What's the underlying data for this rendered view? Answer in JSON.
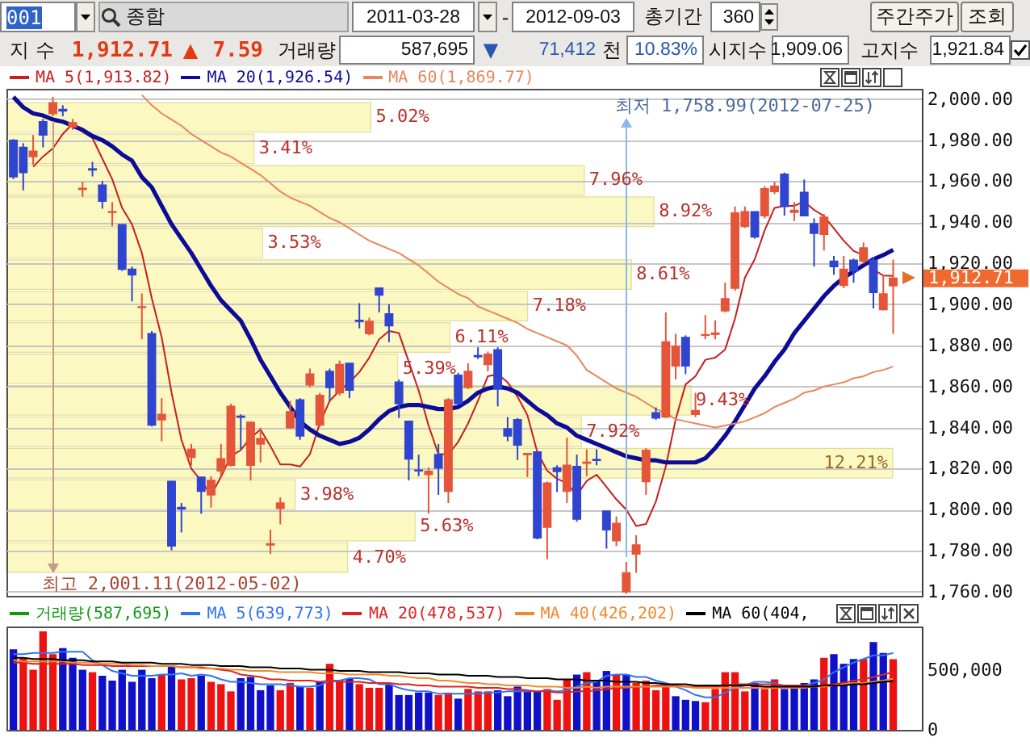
{
  "chart_data": [
    {
      "type": "other",
      "annotations": [
        "001",
        "종합",
        "2011-03-28",
        "-",
        "2012-09-03",
        "총기간",
        "360",
        "주간주가",
        "조회",
        "지 수",
        "1,912.71",
        "▲",
        "7.59",
        "거래량",
        "587,695",
        "▼",
        "71,412",
        "천",
        "10.83%",
        "시지수",
        "1,909.06",
        "고지수",
        "1,921.84"
      ]
    },
    {
      "type": "candlestick",
      "categories": [
        null,
        null,
        null,
        null,
        null,
        null,
        null,
        null,
        null,
        null,
        null,
        null,
        null,
        null,
        null,
        null,
        null,
        null,
        null,
        null,
        null,
        null,
        null,
        null,
        null,
        null,
        null,
        null,
        null,
        null,
        null,
        null,
        null,
        null,
        null,
        null,
        null,
        null,
        null,
        null,
        null,
        null,
        null,
        null,
        null,
        null,
        null,
        null,
        null,
        null,
        null,
        null,
        null,
        null,
        null,
        null,
        null,
        null,
        null,
        null,
        null,
        null,
        null,
        null,
        null,
        null,
        null,
        null,
        null,
        null,
        null,
        null,
        null,
        null,
        null,
        null,
        null,
        null,
        null,
        null,
        null,
        null,
        null,
        null,
        null,
        null,
        null,
        null,
        null,
        null
      ],
      "ohlc": [
        [
          1979.9,
          1980.5,
          1961.0,
          1962.1
        ],
        [
          1976.5,
          1978.5,
          1955.5,
          1964.2
        ],
        [
          1972.0,
          1982.5,
          1968.0,
          1974.6
        ],
        [
          1989.0,
          1990.3,
          1976.5,
          1982.5
        ],
        [
          1992.9,
          2001.11,
          1991.6,
          1998.2
        ],
        [
          1995.0,
          1997.0,
          1991.6,
          1994.2
        ],
        [
          1986.4,
          1990.3,
          1985.0,
          1988.5
        ],
        [
          1956.0,
          1959.7,
          1952.4,
          1956.5
        ],
        [
          1966.0,
          1969.4,
          1962.3,
          1965.5
        ],
        [
          1958.1,
          1960.2,
          1946.6,
          1950.3
        ],
        [
          1944.8,
          1949.8,
          1938.0,
          1945.1
        ],
        [
          1938.8,
          1939.0,
          1916.3,
          1917.1
        ],
        [
          1917.1,
          1918.4,
          1901.4,
          1914.4
        ],
        [
          1898.5,
          1905.3,
          1883.0,
          1898.8
        ],
        [
          1885.7,
          1887.0,
          1840.5,
          1841.2
        ],
        [
          1843.8,
          1854.3,
          1833.3,
          1846.4
        ],
        [
          1813.7,
          1814.0,
          1780.2,
          1782.3
        ],
        [
          1801.0,
          1803.2,
          1788.9,
          1800.3
        ],
        [
          1825.5,
          1832.0,
          1821.6,
          1829.4
        ],
        [
          1815.8,
          1816.0,
          1798.0,
          1809.0
        ],
        [
          1807.2,
          1816.3,
          1801.0,
          1814.2
        ],
        [
          1818.9,
          1832.0,
          1816.3,
          1824.7
        ],
        [
          1821.6,
          1851.6,
          1821.0,
          1850.3
        ],
        [
          1845.5,
          1846.4,
          1829.4,
          1845.0
        ],
        [
          1821.6,
          1842.8,
          1814.2,
          1842.5
        ],
        [
          1832.0,
          1839.9,
          1822.9,
          1834.6
        ],
        [
          1782.8,
          1790.2,
          1778.4,
          1783.3
        ],
        [
          1800.6,
          1805.9,
          1792.8,
          1803.2
        ],
        [
          1839.9,
          1853.0,
          1839.4,
          1847.7
        ],
        [
          1853.5,
          1854.3,
          1834.0,
          1835.9
        ],
        [
          1860.8,
          1868.7,
          1859.5,
          1866.0
        ],
        [
          1841.2,
          1856.9,
          1840.4,
          1855.6
        ],
        [
          1867.3,
          1868.7,
          1853.0,
          1859.5
        ],
        [
          1856.9,
          1872.6,
          1855.6,
          1870.7
        ],
        [
          1871.3,
          1871.5,
          1854.3,
          1858.2
        ],
        [
          1892.2,
          1900.6,
          1888.3,
          1891.7
        ],
        [
          1885.7,
          1893.5,
          1884.9,
          1891.7
        ],
        [
          1907.9,
          1908.2,
          1896.1,
          1904.5
        ],
        [
          1895.3,
          1900.0,
          1881.6,
          1889.6
        ],
        [
          1862.1,
          1863.4,
          1844.6,
          1851.6
        ],
        [
          1843.0,
          1843.3,
          1814.2,
          1824.7
        ],
        [
          1819.2,
          1826.8,
          1816.3,
          1818.9
        ],
        [
          1817.1,
          1820.5,
          1798.0,
          1818.6
        ],
        [
          1826.8,
          1832.0,
          1807.2,
          1820.3
        ],
        [
          1809.0,
          1854.3,
          1803.2,
          1853.5
        ],
        [
          1865.5,
          1866.6,
          1851.0,
          1851.6
        ],
        [
          1859.5,
          1871.3,
          1858.7,
          1867.3
        ],
        [
          1875.0,
          1879.1,
          1873.4,
          1874.5
        ],
        [
          1870.7,
          1877.0,
          1867.3,
          1875.7
        ],
        [
          1877.8,
          1879.1,
          1850.3,
          1858.7
        ],
        [
          1839.4,
          1845.1,
          1833.3,
          1835.9
        ],
        [
          1843.8,
          1844.6,
          1824.2,
          1831.5
        ],
        [
          1826.8,
          1827.5,
          1815.8,
          1827.3
        ],
        [
          1828.1,
          1828.4,
          1785.5,
          1786.2
        ],
        [
          1791.5,
          1813.7,
          1775.8,
          1812.9
        ],
        [
          1820.3,
          1821.6,
          1808.5,
          1818.6
        ],
        [
          1809.0,
          1835.1,
          1803.2,
          1821.6
        ],
        [
          1821.0,
          1826.8,
          1794.1,
          1795.4
        ],
        [
          1822.6,
          1829.4,
          1816.3,
          1823.1
        ],
        [
          1824.4,
          1829.4,
          1821.6,
          1824.0
        ],
        [
          1799.3,
          1799.5,
          1781.0,
          1790.2
        ],
        [
          1784.9,
          1796.7,
          1782.3,
          1793.3
        ],
        [
          1760.0,
          1774.5,
          1758.99,
          1769.2
        ],
        [
          1778.4,
          1787.5,
          1769.2,
          1782.8
        ],
        [
          1813.7,
          1829.9,
          1807.2,
          1828.9
        ],
        [
          1847.2,
          1849.8,
          1843.8,
          1844.6
        ],
        [
          1845.1,
          1896.1,
          1844.6,
          1881.7
        ],
        [
          1870.0,
          1885.7,
          1863.4,
          1879.6
        ],
        [
          1883.8,
          1884.9,
          1866.0,
          1870.0
        ],
        [
          1846.4,
          1856.9,
          1845.1,
          1848.2
        ],
        [
          1884.9,
          1894.8,
          1883.0,
          1885.2
        ],
        [
          1885.4,
          1892.2,
          1883.0,
          1886.0
        ],
        [
          1896.9,
          1910.5,
          1896.1,
          1902.7
        ],
        [
          1907.9,
          1947.7,
          1906.6,
          1944.5
        ],
        [
          1938.0,
          1947.7,
          1937.2,
          1945.1
        ],
        [
          1945.1,
          1945.3,
          1932.0,
          1932.8
        ],
        [
          1943.2,
          1957.6,
          1941.9,
          1956.3
        ],
        [
          1955.0,
          1959.7,
          1953.7,
          1957.6
        ],
        [
          1963.4,
          1964.2,
          1943.2,
          1947.7
        ],
        [
          1944.8,
          1949.8,
          1940.6,
          1945.8
        ],
        [
          1954.5,
          1960.8,
          1943.0,
          1943.2
        ],
        [
          1939.3,
          1941.9,
          1918.4,
          1934.6
        ],
        [
          1934.1,
          1944.0,
          1926.2,
          1942.4
        ],
        [
          1921.0,
          1923.6,
          1914.4,
          1918.4
        ],
        [
          1909.2,
          1923.6,
          1907.9,
          1917.1
        ],
        [
          1921.5,
          1922.3,
          1910.5,
          1916.3
        ],
        [
          1921.0,
          1930.1,
          1919.7,
          1927.5
        ],
        [
          1921.5,
          1923.1,
          1898.0,
          1905.8
        ],
        [
          1897.4,
          1914.4,
          1897.0,
          1905.1
        ],
        [
          1909.06,
          1921.84,
          1885.7,
          1912.71
        ]
      ],
      "colors": [
        "#2f45d0",
        "#2f45d0",
        "#e4553a",
        "#2f45d0",
        "#e4553a",
        "#2f45d0",
        "#e4553a",
        "#e4553a",
        "#2f45d0",
        "#2f45d0",
        "#e4553a",
        "#2f45d0",
        "#2f45d0",
        "#e4553a",
        "#2f45d0",
        "#e4553a",
        "#2f45d0",
        "#2f45d0",
        "#e4553a",
        "#2f45d0",
        "#e4553a",
        "#e4553a",
        "#e4553a",
        "#2f45d0",
        "#e4553a",
        "#e4553a",
        "#e4553a",
        "#e4553a",
        "#e4553a",
        "#2f45d0",
        "#e4553a",
        "#e4553a",
        "#2f45d0",
        "#e4553a",
        "#2f45d0",
        "#2f45d0",
        "#e4553a",
        "#2f45d0",
        "#2f45d0",
        "#2f45d0",
        "#2f45d0",
        "#2f45d0",
        "#e4553a",
        "#2f45d0",
        "#e4553a",
        "#2f45d0",
        "#e4553a",
        "#2f45d0",
        "#e4553a",
        "#2f45d0",
        "#2f45d0",
        "#2f45d0",
        "#e4553a",
        "#2f45d0",
        "#e4553a",
        "#2f45d0",
        "#e4553a",
        "#2f45d0",
        "#e4553a",
        "#2f45d0",
        "#2f45d0",
        "#e4553a",
        "#e4553a",
        "#e4553a",
        "#e4553a",
        "#2f45d0",
        "#e4553a",
        "#e4553a",
        "#2f45d0",
        "#e4553a",
        "#e4553a",
        "#e4553a",
        "#e4553a",
        "#e4553a",
        "#e4553a",
        "#2f45d0",
        "#e4553a",
        "#e4553a",
        "#2f45d0",
        "#e4553a",
        "#2f45d0",
        "#2f45d0",
        "#e4553a",
        "#2f45d0",
        "#e4553a",
        "#2f45d0",
        "#e4553a",
        "#2f45d0",
        "#e4553a",
        "#e4553a"
      ],
      "series": [
        {
          "name": "MA 5(1,913.82)",
          "type": "line",
          "color": "#c81e1e",
          "values": [
            null,
            null,
            1967,
            1972,
            1976,
            1983,
            1988,
            1984,
            1981,
            1971,
            1961,
            1947,
            1939,
            1925,
            1903,
            1884,
            1857,
            1834,
            1820,
            1814,
            1807,
            1816,
            1826,
            1829,
            1835,
            1839,
            1831,
            1822,
            1822,
            1821,
            1827,
            1842,
            1853,
            1858,
            1862,
            1867,
            1874,
            1883,
            1887,
            1886,
            1872,
            1858,
            1841,
            1827,
            1827,
            1833,
            1842,
            1853,
            1865,
            1866,
            1862,
            1855,
            1846,
            1828,
            1819,
            1815,
            1813,
            1807,
            1814,
            1817,
            1811,
            1805,
            1800,
            1792,
            1793,
            1804,
            1821,
            1844,
            1861,
            1865,
            1873,
            1874,
            1878,
            1893,
            1913,
            1922,
            1936,
            1947,
            1948,
            1948,
            1950,
            1946,
            1943,
            1937,
            1931,
            1926,
            1924,
            1917,
            1914,
            1913.82
          ]
        },
        {
          "name": "MA 20(1,926.54)",
          "type": "line",
          "color": "#0c0c96",
          "values": [
            2001,
            1996,
            1993,
            1992,
            1990,
            1989,
            1987,
            1985,
            1982,
            1980,
            1977,
            1973,
            1970,
            1962,
            1957,
            1948,
            1939,
            1932,
            1925,
            1917,
            1909,
            1902,
            1897,
            1892,
            1883,
            1873,
            1865,
            1857,
            1850,
            1843,
            1839,
            1836,
            1834,
            1832,
            1833,
            1835,
            1839,
            1844,
            1848,
            1850,
            1851,
            1851,
            1850,
            1849,
            1849,
            1850,
            1853,
            1857,
            1859,
            1860,
            1859,
            1857,
            1853,
            1849,
            1846,
            1842,
            1840,
            1836,
            1834,
            1832,
            1830,
            1828,
            1826,
            1825,
            1824,
            1824,
            1823,
            1823,
            1823,
            1823,
            1825,
            1830,
            1836,
            1843,
            1851,
            1859,
            1865,
            1872,
            1878,
            1886,
            1892,
            1898,
            1904,
            1909,
            1913,
            1916,
            1919,
            1922,
            1924,
            1926.54
          ]
        },
        {
          "name": "MA 60(1,869.77)",
          "type": "line",
          "color": "#e8875a",
          "values": [
            null,
            null,
            null,
            null,
            null,
            null,
            null,
            null,
            null,
            null,
            null,
            null,
            null,
            2002,
            1997,
            1993,
            1990,
            1987,
            1983,
            1980,
            1977,
            1974,
            1972,
            1969,
            1966,
            1963,
            1959,
            1955,
            1952,
            1950,
            1948,
            1945,
            1942,
            1940,
            1937,
            1934,
            1931,
            1929,
            1927,
            1925,
            1922,
            1919,
            1915,
            1911,
            1908,
            1905,
            1903,
            1899,
            1897,
            1895,
            1893,
            1891,
            1888,
            1886,
            1884,
            1882,
            1880,
            1875,
            1868,
            1865,
            1862,
            1859,
            1857,
            1855,
            1852,
            1849,
            1847,
            1844,
            1843,
            1842,
            1841,
            1840,
            1841,
            1842,
            1843,
            1845,
            1847,
            1850,
            1852,
            1854,
            1857,
            1858,
            1860,
            1861,
            1862,
            1864,
            1865,
            1867,
            1868,
            1869.77
          ]
        }
      ],
      "ylim": [
        1758,
        2005
      ],
      "yticks": [
        {
          "value": 1760,
          "label": "1,760.00"
        },
        {
          "value": 1780,
          "label": "1,780.00"
        },
        {
          "value": 1800,
          "label": "1,800.00"
        },
        {
          "value": 1820,
          "label": "1,820.00"
        },
        {
          "value": 1840,
          "label": "1,840.00"
        },
        {
          "value": 1860,
          "label": "1,860.00"
        },
        {
          "value": 1880,
          "label": "1,880.00"
        },
        {
          "value": 1900,
          "label": "1,900.00"
        },
        {
          "value": 1920,
          "label": "1,920.00"
        },
        {
          "value": 1940,
          "label": "1,940.00"
        },
        {
          "value": 1960,
          "label": "1,960.00"
        },
        {
          "value": 1980,
          "label": "1,980.00"
        },
        {
          "value": 2000,
          "label": "2,000.00"
        }
      ],
      "grid": "y",
      "legend": "top left",
      "tick_labels": "y",
      "annotations": [
        "최고 2,001.11(2012-05-02)",
        "최저 1,758.99(2012-07-25)",
        "1,912.71"
      ]
    },
    {
      "type": "bar",
      "orientation": "horizontal",
      "categories": [
        null,
        null,
        null,
        null,
        null,
        null,
        null,
        null,
        null,
        null,
        null,
        null,
        null,
        null,
        null
      ],
      "color": "#fbf8c2",
      "values": [
        5.02,
        3.41,
        7.96,
        8.92,
        3.53,
        8.61,
        7.18,
        6.11,
        5.39,
        9.43,
        7.92,
        12.21,
        3.98,
        5.63,
        4.7
      ],
      "value_labels": [
        "5.02%",
        "3.41%",
        "7.96%",
        "8.92%",
        "3.53%",
        "8.61%",
        "7.18%",
        "6.11%",
        "5.39%",
        "9.43%",
        "7.92%",
        "12.21%",
        "3.98%",
        "5.63%",
        "4.70%"
      ],
      "tick_labels": false
    },
    {
      "type": "bar",
      "categories": [
        null,
        null,
        null,
        null,
        null,
        null,
        null,
        null,
        null,
        null,
        null,
        null,
        null,
        null,
        null,
        null,
        null,
        null,
        null,
        null,
        null,
        null,
        null,
        null,
        null,
        null,
        null,
        null,
        null,
        null,
        null,
        null,
        null,
        null,
        null,
        null,
        null,
        null,
        null,
        null,
        null,
        null,
        null,
        null,
        null,
        null,
        null,
        null,
        null,
        null,
        null,
        null,
        null,
        null,
        null,
        null,
        null,
        null,
        null,
        null,
        null,
        null,
        null,
        null,
        null,
        null,
        null,
        null,
        null,
        null,
        null,
        null,
        null,
        null,
        null,
        null,
        null,
        null,
        null,
        null,
        null,
        null,
        null,
        null,
        null,
        null,
        null,
        null,
        null,
        null
      ],
      "series": [
        {
          "name": "거래량(587,695)",
          "color": "#119911",
          "colors": [
            "#1010c8",
            "#ee1111",
            "#ee1111",
            "#ee1111",
            "#ee1111",
            "#1010c8",
            "#1010c8",
            "#1010c8",
            "#ee1111",
            "#1010c8",
            "#1010c8",
            "#1010c8",
            "#1010c8",
            "#1010c8",
            "#1010c8",
            "#ee1111",
            "#1010c8",
            "#ee1111",
            "#ee1111",
            "#1010c8",
            "#ee1111",
            "#ee1111",
            "#ee1111",
            "#1010c8",
            "#1010c8",
            "#1010c8",
            "#1010c8",
            "#ee1111",
            "#ee1111",
            "#1010c8",
            "#ee1111",
            "#1010c8",
            "#ee1111",
            "#ee1111",
            "#1010c8",
            "#ee1111",
            "#ee1111",
            "#ee1111",
            "#1010c8",
            "#1010c8",
            "#1010c8",
            "#1010c8",
            "#1010c8",
            "#ee1111",
            "#ee1111",
            "#1010c8",
            "#ee1111",
            "#ee1111",
            "#ee1111",
            "#1010c8",
            "#1010c8",
            "#1010c8",
            "#1010c8",
            "#1010c8",
            "#ee1111",
            "#ee1111",
            "#ee1111",
            "#1010c8",
            "#ee1111",
            "#1010c8",
            "#1010c8",
            "#ee1111",
            "#1010c8",
            "#ee1111",
            "#ee1111",
            "#ee1111",
            "#ee1111",
            "#1010c8",
            "#1010c8",
            "#1010c8",
            "#ee1111",
            "#ee1111",
            "#ee1111",
            "#ee1111",
            "#ee1111",
            "#1010c8",
            "#ee1111",
            "#ee1111",
            "#1010c8",
            "#1010c8",
            "#1010c8",
            "#1010c8",
            "#ee1111",
            "#1010c8",
            "#1010c8",
            "#1010c8",
            "#ee1111",
            "#1010c8",
            "#1010c8",
            "#ee1111"
          ],
          "values": [
            670000,
            600000,
            500000,
            820000,
            630000,
            680000,
            600000,
            500000,
            480000,
            450000,
            410000,
            500000,
            400000,
            500000,
            430000,
            460000,
            530000,
            420000,
            430000,
            450000,
            400000,
            380000,
            320000,
            430000,
            440000,
            330000,
            370000,
            330000,
            390000,
            360000,
            350000,
            400000,
            550000,
            410000,
            430000,
            380000,
            350000,
            350000,
            380000,
            290000,
            290000,
            310000,
            310000,
            290000,
            310000,
            260000,
            340000,
            320000,
            320000,
            330000,
            280000,
            360000,
            330000,
            320000,
            340000,
            250000,
            420000,
            460000,
            480000,
            410000,
            490000,
            460000,
            460000,
            390000,
            410000,
            330000,
            370000,
            280000,
            250000,
            240000,
            230000,
            340000,
            480000,
            480000,
            320000,
            390000,
            340000,
            420000,
            340000,
            370000,
            390000,
            420000,
            600000,
            630000,
            550000,
            590000,
            590000,
            730000,
            640000,
            587695
          ]
        },
        {
          "name": "MA 5(639,773)",
          "type": "line",
          "color": "#2f74f0",
          "values": [
            630000,
            630000,
            640000,
            640000,
            640000,
            650000,
            650000,
            650000,
            580000,
            540000,
            490000,
            470000,
            450000,
            450000,
            450000,
            460000,
            460000,
            470000,
            450000,
            460000,
            450000,
            420000,
            400000,
            400000,
            390000,
            380000,
            380000,
            380000,
            370000,
            360000,
            360000,
            370000,
            410000,
            410000,
            430000,
            430000,
            420000,
            380000,
            380000,
            350000,
            330000,
            320000,
            320000,
            300000,
            300000,
            300000,
            300000,
            300000,
            310000,
            310000,
            320000,
            320000,
            320000,
            320000,
            330000,
            320000,
            330000,
            360000,
            390000,
            400000,
            450000,
            460000,
            460000,
            440000,
            440000,
            410000,
            390000,
            360000,
            330000,
            290000,
            270000,
            270000,
            310000,
            350000,
            370000,
            400000,
            400000,
            390000,
            360000,
            370000,
            370000,
            390000,
            420000,
            480000,
            520000,
            560000,
            590000,
            620000,
            620000,
            639773
          ]
        },
        {
          "name": "MA 20(478,537)",
          "type": "line",
          "color": "#dd2222",
          "values": [
            560000,
            560000,
            550000,
            550000,
            550000,
            550000,
            550000,
            540000,
            540000,
            540000,
            530000,
            530000,
            530000,
            530000,
            530000,
            530000,
            530000,
            520000,
            520000,
            520000,
            510000,
            500000,
            490000,
            460000,
            450000,
            440000,
            420000,
            420000,
            410000,
            410000,
            410000,
            400000,
            410000,
            400000,
            400000,
            400000,
            390000,
            390000,
            390000,
            380000,
            380000,
            370000,
            370000,
            360000,
            360000,
            360000,
            360000,
            350000,
            350000,
            350000,
            340000,
            340000,
            330000,
            320000,
            320000,
            310000,
            310000,
            320000,
            320000,
            330000,
            340000,
            350000,
            350000,
            360000,
            360000,
            370000,
            370000,
            370000,
            360000,
            360000,
            360000,
            360000,
            370000,
            380000,
            380000,
            380000,
            380000,
            380000,
            370000,
            370000,
            370000,
            360000,
            370000,
            380000,
            390000,
            410000,
            420000,
            440000,
            460000,
            478537
          ]
        },
        {
          "name": "MA 40(426,202)",
          "type": "line",
          "color": "#f08a30",
          "values": [
            580000,
            570000,
            570000,
            570000,
            570000,
            570000,
            560000,
            560000,
            560000,
            550000,
            550000,
            550000,
            540000,
            540000,
            530000,
            530000,
            530000,
            520000,
            520000,
            510000,
            510000,
            510000,
            500000,
            500000,
            490000,
            490000,
            490000,
            480000,
            480000,
            480000,
            480000,
            470000,
            470000,
            470000,
            460000,
            460000,
            460000,
            460000,
            450000,
            450000,
            440000,
            430000,
            430000,
            410000,
            410000,
            400000,
            390000,
            390000,
            380000,
            380000,
            370000,
            370000,
            370000,
            360000,
            360000,
            360000,
            350000,
            350000,
            360000,
            350000,
            360000,
            360000,
            360000,
            360000,
            360000,
            360000,
            360000,
            360000,
            360000,
            350000,
            350000,
            350000,
            350000,
            350000,
            350000,
            350000,
            350000,
            350000,
            350000,
            350000,
            350000,
            360000,
            360000,
            370000,
            380000,
            390000,
            390000,
            400000,
            410000,
            426202
          ]
        },
        {
          "name": "MA 60(404,",
          "type": "line",
          "color": "#000000",
          "values": [
            600000,
            600000,
            590000,
            590000,
            590000,
            580000,
            580000,
            580000,
            570000,
            570000,
            570000,
            560000,
            560000,
            560000,
            560000,
            550000,
            550000,
            550000,
            540000,
            540000,
            540000,
            530000,
            530000,
            530000,
            520000,
            520000,
            520000,
            510000,
            510000,
            510000,
            500000,
            500000,
            500000,
            490000,
            490000,
            490000,
            480000,
            480000,
            480000,
            480000,
            470000,
            470000,
            470000,
            460000,
            460000,
            460000,
            450000,
            450000,
            450000,
            440000,
            440000,
            440000,
            430000,
            430000,
            430000,
            420000,
            420000,
            420000,
            410000,
            410000,
            410000,
            400000,
            400000,
            400000,
            390000,
            390000,
            380000,
            380000,
            380000,
            370000,
            370000,
            370000,
            370000,
            370000,
            370000,
            370000,
            360000,
            360000,
            360000,
            360000,
            360000,
            360000,
            370000,
            370000,
            370000,
            380000,
            380000,
            390000,
            400000,
            404000
          ]
        }
      ],
      "ylim": [
        0,
        860000
      ],
      "yticks": [
        0,
        {
          "value": 500000,
          "label": "500,000"
        }
      ],
      "legend": "top left",
      "tick_labels": "y"
    }
  ]
}
